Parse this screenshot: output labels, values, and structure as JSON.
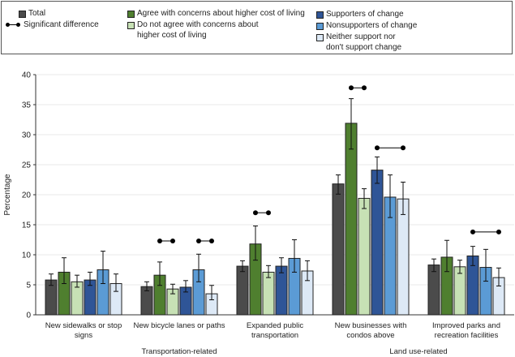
{
  "legend": {
    "total": "Total",
    "significant": "Significant difference",
    "agree": "Agree with concerns about higher cost of living",
    "disagree": "Do not agree with concerns about higher cost of living",
    "supporters": "Supporters of change",
    "nonsupporters": "Nonsupporters of change",
    "neither": "Neither support nor don't support change"
  },
  "chart_data": {
    "type": "bar",
    "ylabel": "Percentage",
    "ylim": [
      0,
      40
    ],
    "yticks": [
      0,
      5,
      10,
      15,
      20,
      25,
      30,
      35,
      40
    ],
    "grid": true,
    "legend_position": "top",
    "categories": [
      "New sidewalks or stop signs",
      "New bicycle lanes or paths",
      "Expanded public transportation",
      "New businesses with condos above",
      "Improved parks and recreation facilities"
    ],
    "category_groups": [
      {
        "label": "Transportation-related",
        "categories": [
          0,
          1,
          2
        ]
      },
      {
        "label": "Land use-related",
        "categories": [
          3,
          4
        ]
      }
    ],
    "series": [
      {
        "name": "Total",
        "color": "#4b4b4b",
        "values": [
          5.8,
          4.7,
          8.1,
          21.8,
          8.3
        ],
        "ci": [
          [
            4.9,
            6.8
          ],
          [
            4.0,
            5.5
          ],
          [
            7.2,
            9.0
          ],
          [
            20.1,
            23.3
          ],
          [
            7.2,
            9.3
          ]
        ]
      },
      {
        "name": "Agree with concerns about higher cost of living",
        "color": "#4f7f2f",
        "values": [
          7.1,
          6.6,
          11.8,
          31.9,
          9.6
        ],
        "ci": [
          [
            5.2,
            9.5
          ],
          [
            4.9,
            8.8
          ],
          [
            9.1,
            14.8
          ],
          [
            27.6,
            36.0
          ],
          [
            7.2,
            12.4
          ]
        ]
      },
      {
        "name": "Do not agree with concerns about higher cost of living",
        "color": "#c7e1b5",
        "values": [
          5.5,
          4.3,
          7.1,
          19.4,
          8.0
        ],
        "ci": [
          [
            4.6,
            6.6
          ],
          [
            3.5,
            5.1
          ],
          [
            6.2,
            8.2
          ],
          [
            17.7,
            21.0
          ],
          [
            6.9,
            9.1
          ]
        ]
      },
      {
        "name": "Supporters of change",
        "color": "#2f5597",
        "values": [
          5.8,
          4.6,
          8.1,
          24.1,
          9.8
        ],
        "ci": [
          [
            4.9,
            7.1
          ],
          [
            3.8,
            5.7
          ],
          [
            7.0,
            9.5
          ],
          [
            21.9,
            26.3
          ],
          [
            8.2,
            11.4
          ]
        ]
      },
      {
        "name": "Nonsupporters of change",
        "color": "#5b9bd5",
        "values": [
          7.5,
          7.5,
          9.4,
          19.6,
          7.9
        ],
        "ci": [
          [
            5.2,
            10.6
          ],
          [
            5.5,
            10.1
          ],
          [
            7.1,
            12.5
          ],
          [
            16.2,
            23.3
          ],
          [
            5.6,
            10.9
          ]
        ]
      },
      {
        "name": "Neither support nor don't support change",
        "color": "#dde9f6",
        "values": [
          5.2,
          3.5,
          7.3,
          19.3,
          6.2
        ],
        "ci": [
          [
            3.9,
            6.8
          ],
          [
            2.5,
            4.9
          ],
          [
            5.7,
            9.0
          ],
          [
            16.7,
            22.1
          ],
          [
            4.8,
            7.8
          ]
        ]
      }
    ],
    "significant_differences": [
      {
        "category": 1,
        "from_series": 1,
        "to_series": 2,
        "y": 12.3
      },
      {
        "category": 1,
        "from_series": 4,
        "to_series": 5,
        "y": 12.3
      },
      {
        "category": 2,
        "from_series": 1,
        "to_series": 2,
        "y": 17.0
      },
      {
        "category": 3,
        "from_series": 1,
        "to_series": 2,
        "y": 37.8
      },
      {
        "category": 3,
        "from_series": 3,
        "to_series": 5,
        "y": 27.8
      },
      {
        "category": 4,
        "from_series": 3,
        "to_series": 5,
        "y": 13.8
      }
    ]
  }
}
